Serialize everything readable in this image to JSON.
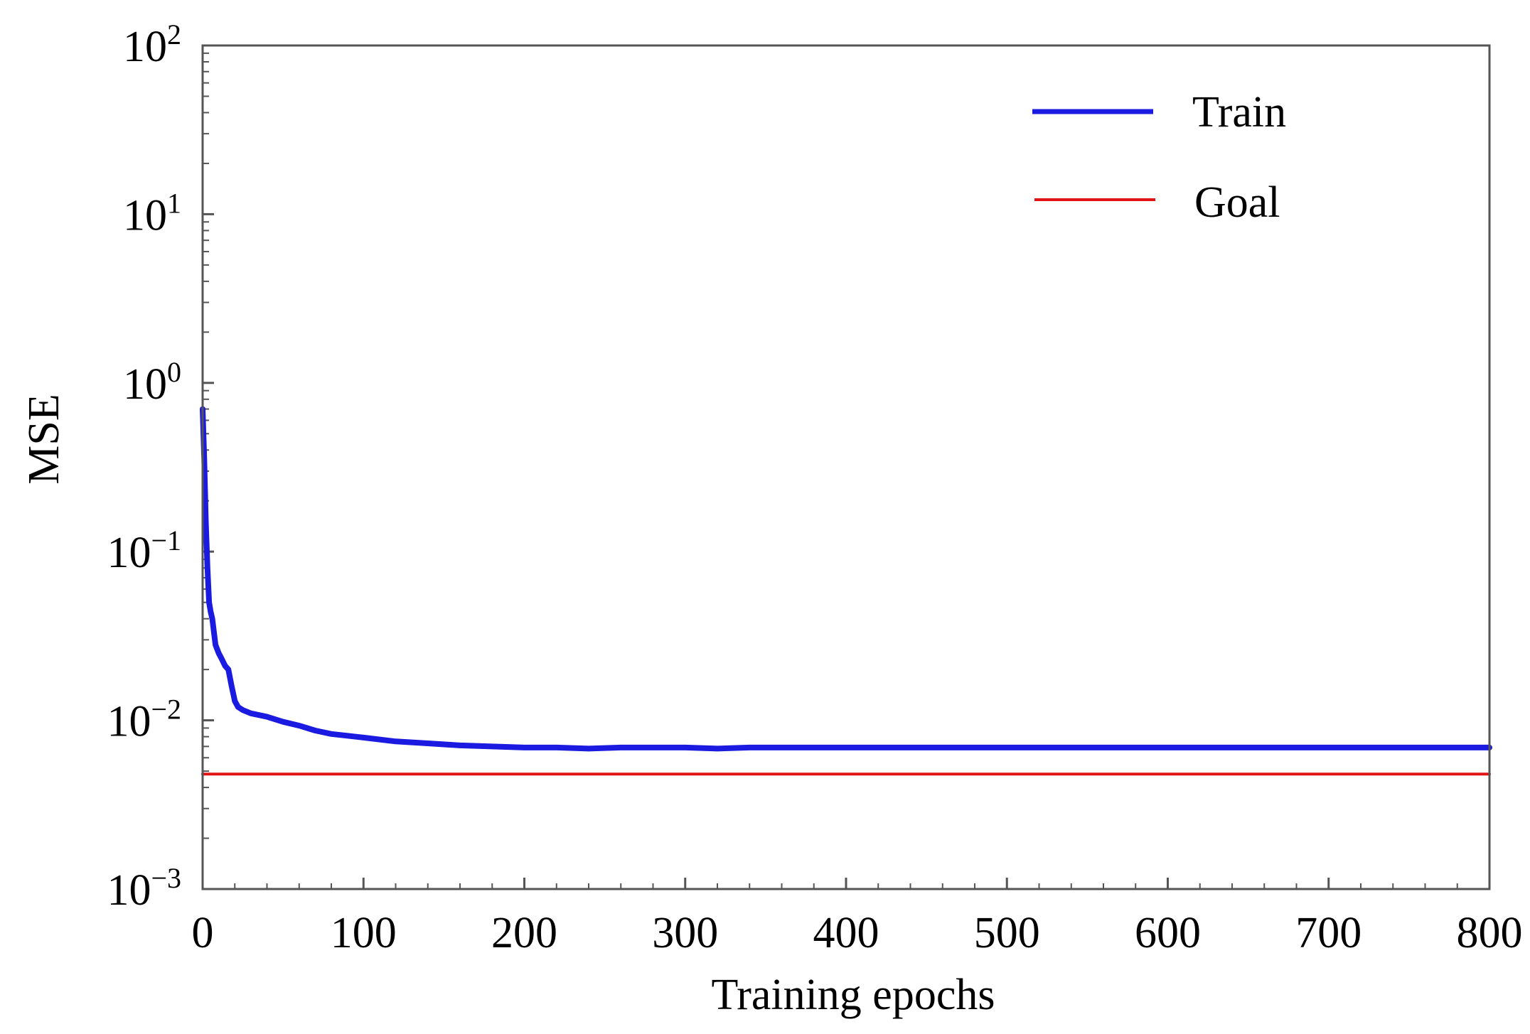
{
  "chart_data": {
    "type": "line",
    "title": "",
    "xlabel": "Training epochs",
    "ylabel": "MSE",
    "xlim": [
      0,
      800
    ],
    "ylim": [
      0.001,
      100
    ],
    "yscale": "log",
    "grid": false,
    "legend_position": "top-right",
    "x_ticks": [
      0,
      100,
      200,
      300,
      400,
      500,
      600,
      700,
      800
    ],
    "y_ticks": [
      {
        "value": 0.001,
        "base": "10",
        "exp": "−3"
      },
      {
        "value": 0.01,
        "base": "10",
        "exp": "−2"
      },
      {
        "value": 0.1,
        "base": "10",
        "exp": "−1"
      },
      {
        "value": 1,
        "base": "10",
        "exp": "0"
      },
      {
        "value": 10,
        "base": "10",
        "exp": "1"
      },
      {
        "value": 100,
        "base": "10",
        "exp": "2"
      }
    ],
    "series": [
      {
        "name": "Train",
        "color": "#1a1ae0",
        "x": [
          0,
          1,
          2,
          3,
          4,
          5,
          6,
          8,
          10,
          12,
          14,
          16,
          18,
          20,
          22,
          25,
          30,
          40,
          50,
          60,
          70,
          80,
          90,
          100,
          120,
          140,
          160,
          180,
          200,
          220,
          240,
          260,
          280,
          300,
          320,
          340,
          360,
          400,
          450,
          500,
          550,
          600,
          650,
          700,
          750,
          800
        ],
        "values": [
          0.7,
          0.35,
          0.15,
          0.08,
          0.05,
          0.044,
          0.04,
          0.028,
          0.025,
          0.023,
          0.021,
          0.02,
          0.016,
          0.013,
          0.012,
          0.0115,
          0.011,
          0.0105,
          0.0098,
          0.0093,
          0.0087,
          0.0083,
          0.0081,
          0.0079,
          0.0075,
          0.0073,
          0.0071,
          0.007,
          0.0069,
          0.0069,
          0.0068,
          0.0069,
          0.0069,
          0.0069,
          0.0068,
          0.0069,
          0.0069,
          0.0069,
          0.0069,
          0.0069,
          0.0069,
          0.0069,
          0.0069,
          0.0069,
          0.0069,
          0.0069
        ]
      },
      {
        "name": "Goal",
        "color": "#e01414",
        "x": [
          0,
          800
        ],
        "values": [
          0.0048,
          0.0048
        ]
      }
    ]
  }
}
